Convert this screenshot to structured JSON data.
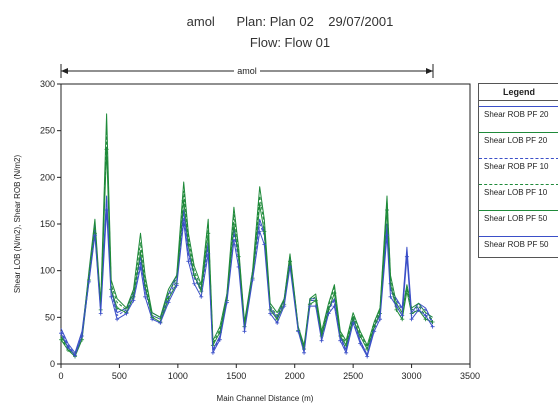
{
  "chart_data": {
    "type": "line",
    "title": "amol      Plan: Plan 02    29/07/2001",
    "subtitle": "Flow: Flow 01",
    "reach_label": "amol",
    "xlabel": "Main Channel Distance (m)",
    "ylabel": "Shear LOB (N/m2), Shear ROB (N/m2)",
    "xlim": [
      0,
      3500
    ],
    "ylim": [
      0,
      300
    ],
    "xticks": [
      0,
      500,
      1000,
      1500,
      2000,
      2500,
      3000,
      3500
    ],
    "yticks": [
      0,
      50,
      100,
      150,
      200,
      250,
      300
    ],
    "reach_extent": [
      0,
      3200
    ],
    "legend": {
      "title": "Legend",
      "placement": "right"
    },
    "x": [
      0,
      60,
      120,
      180,
      240,
      290,
      340,
      390,
      430,
      480,
      560,
      620,
      680,
      720,
      780,
      850,
      920,
      990,
      1050,
      1090,
      1140,
      1200,
      1260,
      1300,
      1360,
      1420,
      1480,
      1520,
      1570,
      1640,
      1700,
      1740,
      1790,
      1850,
      1910,
      1960,
      2030,
      2080,
      2130,
      2180,
      2230,
      2290,
      2340,
      2390,
      2440,
      2500,
      2560,
      2620,
      2680,
      2730,
      2790,
      2820,
      2870,
      2920,
      2960,
      3000,
      3060,
      3120,
      3180
    ],
    "series": [
      {
        "name": "Shear ROB PF 20",
        "color": "#3b4fc8",
        "dash": "solid",
        "marker": "none",
        "values": [
          38,
          22,
          12,
          35,
          95,
          150,
          60,
          180,
          80,
          55,
          60,
          75,
          115,
          80,
          55,
          50,
          75,
          95,
          165,
          120,
          95,
          80,
          130,
          15,
          30,
          75,
          145,
          115,
          40,
          100,
          155,
          140,
          60,
          50,
          70,
          115,
          40,
          15,
          70,
          70,
          30,
          60,
          70,
          30,
          15,
          50,
          25,
          10,
          40,
          55,
          150,
          80,
          70,
          60,
          125,
          55,
          65,
          60,
          45
        ]
      },
      {
        "name": "Shear LOB PF 20",
        "color": "#1f8a3a",
        "dash": "solid",
        "marker": "none",
        "values": [
          30,
          18,
          10,
          30,
          100,
          155,
          65,
          268,
          90,
          70,
          60,
          80,
          140,
          95,
          55,
          50,
          80,
          95,
          195,
          140,
          105,
          85,
          155,
          25,
          40,
          75,
          168,
          125,
          45,
          100,
          190,
          155,
          65,
          55,
          70,
          118,
          40,
          20,
          70,
          75,
          35,
          65,
          85,
          35,
          25,
          55,
          35,
          20,
          45,
          60,
          180,
          95,
          65,
          55,
          85,
          60,
          65,
          55,
          50
        ]
      },
      {
        "name": "Shear ROB PF 10",
        "color": "#3b4fc8",
        "dash": "dashed",
        "marker": "none",
        "values": [
          35,
          20,
          10,
          32,
          95,
          145,
          58,
          175,
          78,
          52,
          58,
          72,
          110,
          78,
          52,
          48,
          72,
          90,
          160,
          118,
          92,
          78,
          125,
          14,
          28,
          72,
          140,
          112,
          38,
          97,
          150,
          138,
          58,
          48,
          68,
          112,
          38,
          14,
          68,
          68,
          28,
          58,
          68,
          28,
          14,
          48,
          24,
          9,
          38,
          52,
          145,
          78,
          68,
          58,
          120,
          52,
          62,
          58,
          43
        ]
      },
      {
        "name": "Shear LOB PF 10",
        "color": "#1f8a3a",
        "dash": "dashed",
        "marker": "none",
        "values": [
          28,
          16,
          9,
          28,
          95,
          150,
          62,
          250,
          85,
          66,
          58,
          78,
          130,
          90,
          52,
          48,
          76,
          92,
          185,
          135,
          100,
          82,
          150,
          22,
          37,
          72,
          160,
          122,
          43,
          97,
          180,
          150,
          62,
          52,
          68,
          115,
          38,
          18,
          68,
          72,
          33,
          62,
          82,
          33,
          22,
          52,
          33,
          18,
          43,
          58,
          175,
          92,
          62,
          52,
          82,
          58,
          62,
          52,
          48
        ]
      },
      {
        "name": "Shear LOB PF 50",
        "color": "#1f8a3a",
        "dash": "solid",
        "marker": "plus",
        "values": [
          26,
          15,
          8,
          26,
          90,
          140,
          58,
          230,
          80,
          60,
          55,
          72,
          120,
          84,
          50,
          45,
          70,
          86,
          175,
          128,
          95,
          78,
          140,
          20,
          34,
          68,
          150,
          115,
          40,
          92,
          170,
          142,
          58,
          48,
          64,
          110,
          36,
          16,
          64,
          68,
          30,
          58,
          76,
          30,
          20,
          48,
          30,
          16,
          40,
          54,
          165,
          86,
          58,
          48,
          78,
          54,
          58,
          48,
          45
        ]
      },
      {
        "name": "Shear ROB PF 50",
        "color": "#3b4fc8",
        "dash": "solid",
        "marker": "plus",
        "values": [
          33,
          18,
          9,
          30,
          88,
          138,
          54,
          165,
          72,
          48,
          54,
          68,
          104,
          72,
          48,
          44,
          66,
          84,
          152,
          110,
          86,
          72,
          118,
          12,
          26,
          66,
          132,
          104,
          35,
          90,
          142,
          128,
          54,
          44,
          62,
          104,
          35,
          12,
          62,
          62,
          25,
          54,
          62,
          25,
          12,
          44,
          22,
          8,
          35,
          48,
          138,
          72,
          62,
          52,
          115,
          48,
          58,
          52,
          40
        ]
      }
    ]
  }
}
